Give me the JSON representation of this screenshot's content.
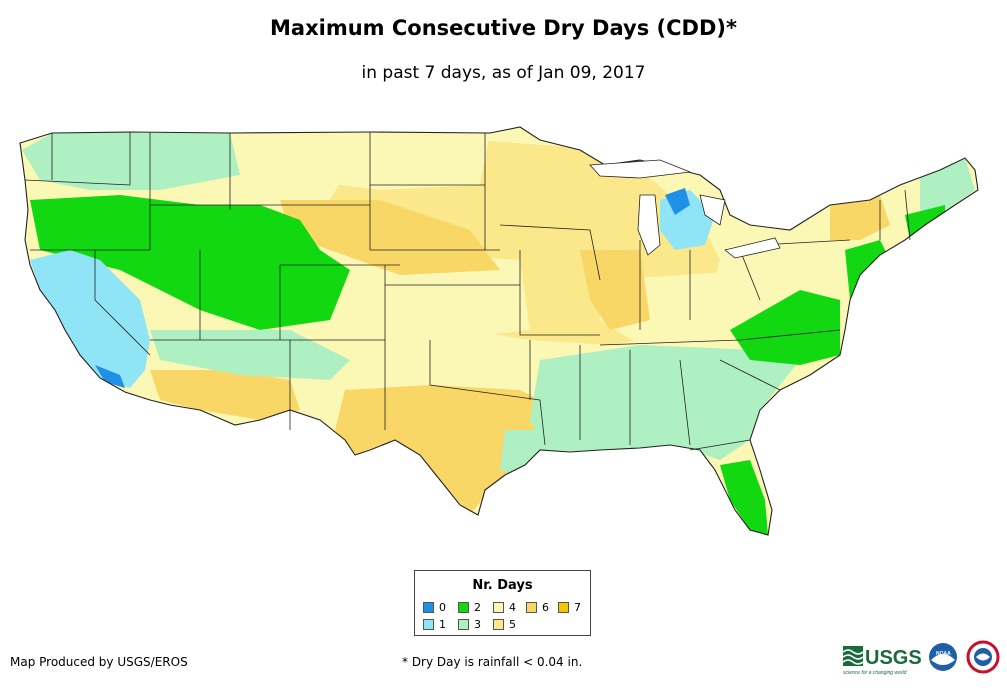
{
  "header": {
    "title": "Maximum Consecutive Dry Days (CDD)*",
    "subtitle": "in past 7 days, as of Jan 09, 2017"
  },
  "legend": {
    "title": "Nr. Days",
    "items": [
      {
        "label": "0",
        "color": "#1e90e6"
      },
      {
        "label": "1",
        "color": "#8fe4f5"
      },
      {
        "label": "2",
        "color": "#12d812"
      },
      {
        "label": "3",
        "color": "#aef0c2"
      },
      {
        "label": "4",
        "color": "#fbf7b5"
      },
      {
        "label": "5",
        "color": "#fbe88a"
      },
      {
        "label": "6",
        "color": "#f9d767"
      },
      {
        "label": "7",
        "color": "#f5c500"
      }
    ]
  },
  "footer": {
    "credit": "Map Produced by USGS/EROS",
    "note": "* Dry Day is rainfall < 0.04 in."
  },
  "logos": {
    "usgs_text": "USGS",
    "usgs_tagline": "science for a changing world",
    "noaa_text": "NOAA"
  }
}
